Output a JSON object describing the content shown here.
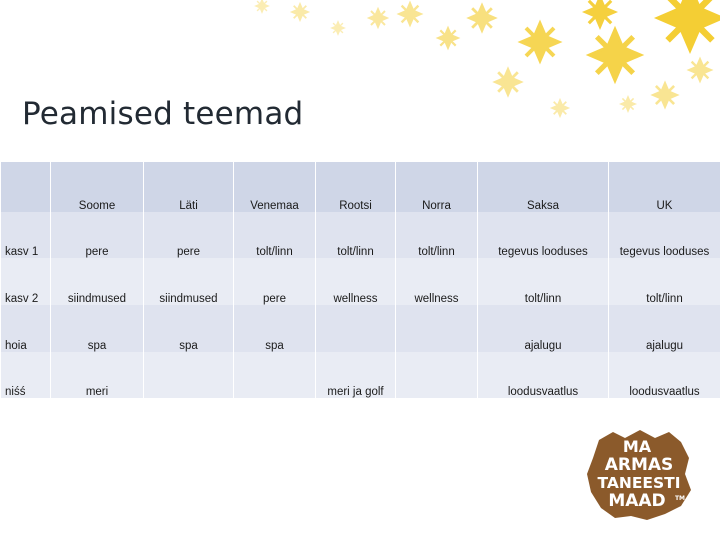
{
  "title": "Peamised teemad",
  "table": {
    "columns": [
      "",
      "Soome",
      "Läti",
      "Venemaa",
      "Rootsi",
      "Norra",
      "Saksa",
      "UK"
    ],
    "rows": [
      {
        "label": "kasv 1",
        "cells": [
          "pere",
          "pere",
          "tolt/linn",
          "tolt/linn",
          "tolt/linn",
          "tegevus looduses",
          "tegevus looduses"
        ]
      },
      {
        "label": "kasv 2",
        "cells": [
          "siindmused",
          "siindmused",
          "pere",
          "wellness",
          "wellness",
          "tolt/linn",
          "tolt/linn"
        ]
      },
      {
        "label": "hoia",
        "cells": [
          "spa",
          "spa",
          "spa",
          "",
          "",
          "ajalugu",
          "ajalugu"
        ]
      },
      {
        "label": "niśś",
        "cells": [
          "meri",
          "",
          "",
          "meri ja golf",
          "",
          "loodusvaatlus",
          "loodusvaatlus"
        ]
      }
    ]
  },
  "logo": {
    "lines": [
      "MA",
      "ARMAS",
      "TANEESTI",
      "MAAD"
    ],
    "tm": "TM"
  },
  "colors": {
    "header_fill": "#cfd6e7",
    "row_fill_a": "#dfe3ef",
    "row_fill_b": "#e9ecf4",
    "logo_brown": "#8b5a2b",
    "snowflake": "#f2c200"
  }
}
